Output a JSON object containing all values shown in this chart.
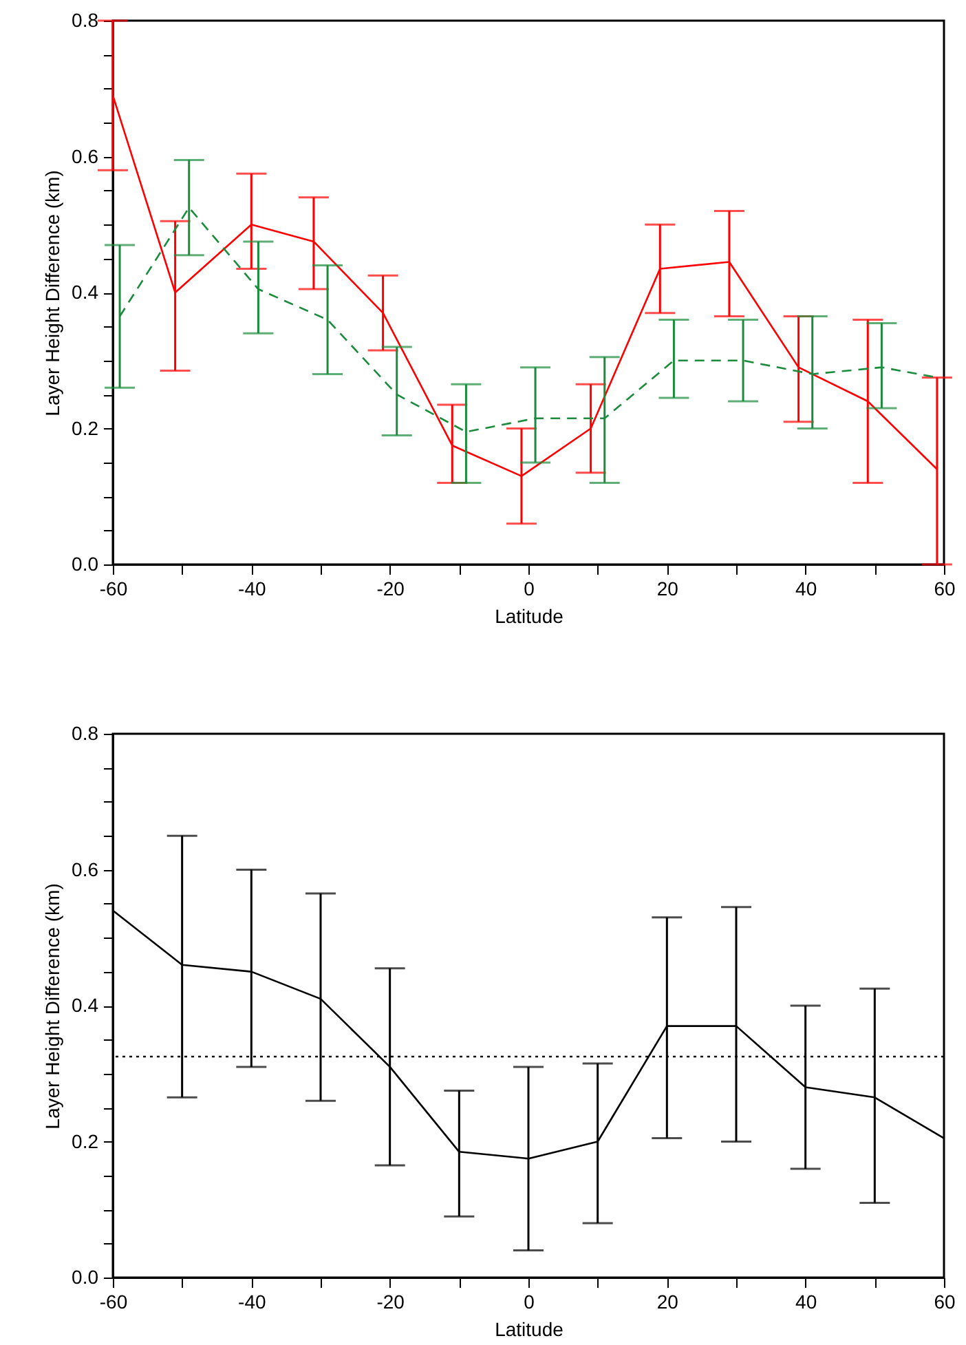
{
  "chart_data": [
    {
      "type": "line",
      "xlabel": "Latitude",
      "ylabel": "Layer Height Difference (km)",
      "xlim": [
        -60,
        60
      ],
      "ylim": [
        0,
        0.8
      ],
      "xticks": [
        -60,
        {
          "value": -50,
          "label": null
        },
        -40,
        {
          "value": -30,
          "label": null
        },
        -20,
        {
          "value": -10,
          "label": null
        },
        0,
        {
          "value": 10,
          "label": null
        },
        20,
        {
          "value": 30,
          "label": null
        },
        40,
        {
          "value": 50,
          "label": null
        },
        60
      ],
      "yticks": [
        {
          "value": 0,
          "label": "0.0"
        },
        {
          "value": 0.05,
          "label": null
        },
        {
          "value": 0.1,
          "label": null
        },
        {
          "value": 0.15,
          "label": null
        },
        {
          "value": 0.2,
          "label": "0.2"
        },
        {
          "value": 0.25,
          "label": null
        },
        {
          "value": 0.3,
          "label": null
        },
        {
          "value": 0.35,
          "label": null
        },
        {
          "value": 0.4,
          "label": "0.4"
        },
        {
          "value": 0.45,
          "label": null
        },
        {
          "value": 0.5,
          "label": null
        },
        {
          "value": 0.55,
          "label": null
        },
        {
          "value": 0.6,
          "label": "0.6"
        },
        {
          "value": 0.65,
          "label": null
        },
        {
          "value": 0.7,
          "label": null
        },
        {
          "value": 0.75,
          "label": null
        },
        {
          "value": 0.8,
          "label": "0.8"
        }
      ],
      "grid": false,
      "legend": false,
      "marker": "none",
      "series": [
        {
          "color": "#ff0000",
          "line_style": "solid",
          "x": [
            -60,
            -51,
            -40,
            -31,
            -21,
            -11,
            -1,
            9,
            19,
            29,
            39,
            49,
            59
          ],
          "values": [
            0.69,
            0.4,
            0.5,
            0.475,
            0.37,
            0.175,
            0.13,
            0.2,
            0.435,
            0.445,
            0.29,
            0.24,
            0.14
          ],
          "errors": [
            [
              0.58,
              0.8
            ],
            [
              0.285,
              0.505
            ],
            [
              0.435,
              0.575
            ],
            [
              0.405,
              0.54
            ],
            [
              0.315,
              0.425
            ],
            [
              0.12,
              0.235
            ],
            [
              0.06,
              0.2
            ],
            [
              0.135,
              0.265
            ],
            [
              0.37,
              0.5
            ],
            [
              0.365,
              0.52
            ],
            [
              0.21,
              0.365
            ],
            [
              0.12,
              0.36
            ],
            [
              0.0,
              0.275
            ]
          ]
        },
        {
          "color": "#1a8c3c",
          "line_style": "dashed",
          "x": [
            -59,
            -49,
            -39,
            -29,
            -19,
            -9,
            1,
            11,
            21,
            31,
            41,
            51,
            59
          ],
          "values": [
            0.365,
            0.525,
            0.405,
            0.36,
            0.25,
            0.195,
            0.215,
            0.215,
            0.3,
            0.3,
            0.28,
            0.29,
            0.275
          ],
          "errors": [
            [
              0.26,
              0.47
            ],
            [
              0.455,
              0.595
            ],
            [
              0.34,
              0.475
            ],
            [
              0.28,
              0.44
            ],
            [
              0.19,
              0.32
            ],
            [
              0.12,
              0.265
            ],
            [
              0.15,
              0.29
            ],
            [
              0.12,
              0.305
            ],
            [
              0.245,
              0.36
            ],
            [
              0.24,
              0.36
            ],
            [
              0.2,
              0.365
            ],
            [
              0.23,
              0.355
            ],
            null
          ]
        }
      ]
    },
    {
      "type": "line",
      "xlabel": "Latitude",
      "ylabel": "Layer Height Difference (km)",
      "xlim": [
        -60,
        60
      ],
      "ylim": [
        0,
        0.8
      ],
      "xticks": [
        -60,
        {
          "value": -50,
          "label": null
        },
        -40,
        {
          "value": -30,
          "label": null
        },
        -20,
        {
          "value": -10,
          "label": null
        },
        0,
        {
          "value": 10,
          "label": null
        },
        20,
        {
          "value": 30,
          "label": null
        },
        40,
        {
          "value": 50,
          "label": null
        },
        60
      ],
      "yticks": [
        {
          "value": 0,
          "label": "0.0"
        },
        {
          "value": 0.05,
          "label": null
        },
        {
          "value": 0.1,
          "label": null
        },
        {
          "value": 0.15,
          "label": null
        },
        {
          "value": 0.2,
          "label": "0.2"
        },
        {
          "value": 0.25,
          "label": null
        },
        {
          "value": 0.3,
          "label": null
        },
        {
          "value": 0.35,
          "label": null
        },
        {
          "value": 0.4,
          "label": "0.4"
        },
        {
          "value": 0.45,
          "label": null
        },
        {
          "value": 0.5,
          "label": null
        },
        {
          "value": 0.55,
          "label": null
        },
        {
          "value": 0.6,
          "label": "0.6"
        },
        {
          "value": 0.65,
          "label": null
        },
        {
          "value": 0.7,
          "label": null
        },
        {
          "value": 0.75,
          "label": null
        },
        {
          "value": 0.8,
          "label": "0.8"
        }
      ],
      "grid": false,
      "legend": false,
      "marker": "none",
      "series": [
        {
          "color": "#000000",
          "line_style": "solid",
          "x": [
            -60,
            -50,
            -40,
            -30,
            -20,
            -10,
            0,
            10,
            20,
            30,
            40,
            50,
            60
          ],
          "values": [
            0.54,
            0.46,
            0.45,
            0.41,
            0.31,
            0.185,
            0.175,
            0.2,
            0.37,
            0.37,
            0.28,
            0.265,
            0.205
          ],
          "errors": [
            null,
            [
              0.265,
              0.65
            ],
            [
              0.31,
              0.6
            ],
            [
              0.26,
              0.565
            ],
            [
              0.165,
              0.455
            ],
            [
              0.09,
              0.275
            ],
            [
              0.04,
              0.31
            ],
            [
              0.08,
              0.315
            ],
            [
              0.205,
              0.53
            ],
            [
              0.2,
              0.545
            ],
            [
              0.16,
              0.4
            ],
            [
              0.11,
              0.425
            ],
            null
          ]
        }
      ],
      "ref_lines": [
        {
          "axis": "y",
          "value": 0.325,
          "line_style": "dotted",
          "color": "#000000"
        }
      ]
    }
  ]
}
